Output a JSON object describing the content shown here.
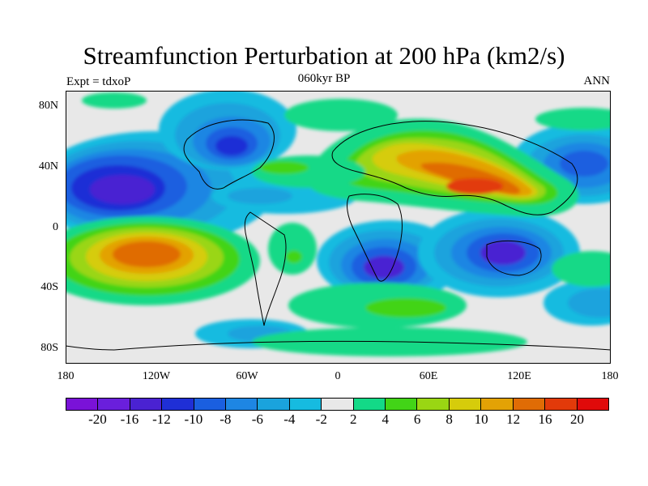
{
  "title": "Streamfunction Perturbation at 200 hPa (km2/s)",
  "left_string": "Expt = tdxoP",
  "center_string": "060kyr BP",
  "right_string": "ANN",
  "lat_labels": [
    "80N",
    "40N",
    "0",
    "40S",
    "80S"
  ],
  "lon_labels": [
    "180",
    "120W",
    "60W",
    "0",
    "60E",
    "120E",
    "180"
  ],
  "colorbar": {
    "labels": [
      "-20",
      "-16",
      "-12",
      "-10",
      "-8",
      "-6",
      "-4",
      "-2",
      "2",
      "4",
      "6",
      "8",
      "10",
      "12",
      "16",
      "20"
    ],
    "colors": [
      "#7a12d8",
      "#6a1fdc",
      "#4a22d2",
      "#1f2fd6",
      "#1a5fe0",
      "#1e86e3",
      "#1aa3dd",
      "#16bbe0",
      "#e8e8e8",
      "#13d987",
      "#42d417",
      "#9ad613",
      "#d6cc0b",
      "#e3a205",
      "#e06c05",
      "#e23a0a",
      "#e00a0a"
    ]
  },
  "chart_data": {
    "type": "heatmap",
    "title": "Streamfunction Perturbation at 200 hPa (km2/s)",
    "subtitle": "060kyr BP",
    "left_label": "Expt = tdxoP",
    "right_label": "ANN",
    "x_range": [
      -180,
      180
    ],
    "y_range": [
      -90,
      90
    ],
    "x_ticks": [
      -180,
      -120,
      -60,
      0,
      60,
      120,
      180
    ],
    "y_ticks": [
      80,
      40,
      0,
      -40,
      -80
    ],
    "contour_levels": [
      -20,
      -16,
      -12,
      -10,
      -8,
      -6,
      -4,
      -2,
      2,
      4,
      6,
      8,
      10,
      12,
      16,
      20
    ],
    "features": [
      {
        "lon": -140,
        "lat": 25,
        "value": -16
      },
      {
        "lon": -70,
        "lat": 60,
        "value": -14
      },
      {
        "lon": 150,
        "lat": 45,
        "value": -10
      },
      {
        "lon": 25,
        "lat": -28,
        "value": -14
      },
      {
        "lon": 110,
        "lat": -20,
        "value": -16
      },
      {
        "lon": -130,
        "lat": -20,
        "value": 16
      },
      {
        "lon": 90,
        "lat": 30,
        "value": 16
      },
      {
        "lon": 55,
        "lat": 58,
        "value": 12
      },
      {
        "lon": 10,
        "lat": -55,
        "value": 4
      },
      {
        "lon": -40,
        "lat": -20,
        "value": 4
      }
    ]
  }
}
